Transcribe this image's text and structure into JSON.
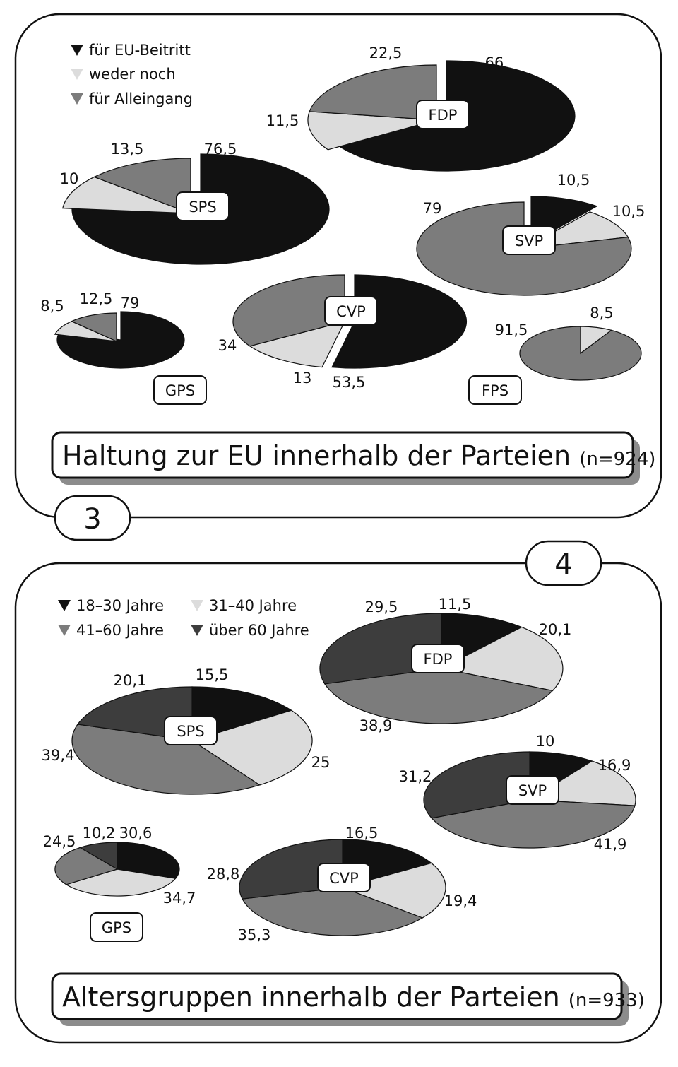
{
  "colors": {
    "eu_beitritt": "#111111",
    "weder_noch": "#dcdcdc",
    "alleingang": "#7c7c7c",
    "age_18_30": "#111111",
    "age_31_40": "#dcdcdc",
    "age_41_60": "#7c7c7c",
    "age_ueber_60": "#3d3d3d"
  },
  "panel3": {
    "number": "3",
    "title": "Haltung zur EU innerhalb der Parteien",
    "n": "(n=924)",
    "legend": [
      {
        "label": "für EU-Beitritt",
        "color": "#111111"
      },
      {
        "label": "weder noch",
        "color": "#dcdcdc"
      },
      {
        "label": "für Alleingang",
        "color": "#7c7c7c"
      }
    ]
  },
  "panel4": {
    "number": "4",
    "title": "Altersgruppen innerhalb der Parteien",
    "n": "(n=933)",
    "legend": [
      {
        "label": "18–30 Jahre",
        "color": "#111111"
      },
      {
        "label": "31–40 Jahre",
        "color": "#dcdcdc"
      },
      {
        "label": "41–60 Jahre",
        "color": "#7c7c7c"
      },
      {
        "label": "über 60 Jahre",
        "color": "#3d3d3d"
      }
    ]
  },
  "chart_data": [
    {
      "type": "pie",
      "panel": "3",
      "title": "Haltung zur EU innerhalb der Parteien (n=924)",
      "categories": [
        "für EU-Beitritt",
        "weder noch",
        "für Alleingang"
      ],
      "series": [
        {
          "name": "FDP",
          "values": [
            66,
            11.5,
            22.5
          ],
          "labels": [
            "66",
            "11,5",
            "22,5"
          ]
        },
        {
          "name": "SPS",
          "values": [
            76.5,
            10,
            13.5
          ],
          "labels": [
            "76,5",
            "10",
            "13,5"
          ]
        },
        {
          "name": "SVP",
          "values": [
            10.5,
            10.5,
            79
          ],
          "labels": [
            "10,5",
            "10,5",
            "79"
          ]
        },
        {
          "name": "CVP",
          "values": [
            53.5,
            13,
            34
          ],
          "labels": [
            "53,5",
            "13",
            "34"
          ]
        },
        {
          "name": "GPS",
          "values": [
            79,
            8.5,
            12.5
          ],
          "labels": [
            "79",
            "8,5",
            "12,5"
          ]
        },
        {
          "name": "FPS",
          "values": [
            0,
            8.5,
            91.5
          ],
          "labels": [
            "",
            "8,5",
            "91,5"
          ]
        }
      ]
    },
    {
      "type": "pie",
      "panel": "4",
      "title": "Altersgruppen innerhalb der Parteien (n=933)",
      "categories": [
        "18–30 Jahre",
        "31–40 Jahre",
        "41–60 Jahre",
        "über 60 Jahre"
      ],
      "series": [
        {
          "name": "FDP",
          "values": [
            11.5,
            20.1,
            38.9,
            29.5
          ],
          "labels": [
            "11,5",
            "20,1",
            "38,9",
            "29,5"
          ]
        },
        {
          "name": "SPS",
          "values": [
            15.5,
            25,
            39.4,
            20.1
          ],
          "labels": [
            "15,5",
            "25",
            "39,4",
            "20,1"
          ]
        },
        {
          "name": "SVP",
          "values": [
            10,
            16.9,
            41.9,
            31.2
          ],
          "labels": [
            "10",
            "16,9",
            "41,9",
            "31,2"
          ]
        },
        {
          "name": "GPS",
          "values": [
            30.6,
            34.7,
            24.5,
            10.2
          ],
          "labels": [
            "30,6",
            "34,7",
            "24,5",
            "10,2"
          ]
        },
        {
          "name": "CVP",
          "values": [
            16.5,
            19.4,
            35.3,
            28.8
          ],
          "labels": [
            "16,5",
            "19,4",
            "35,3",
            "28,8"
          ]
        }
      ]
    }
  ]
}
